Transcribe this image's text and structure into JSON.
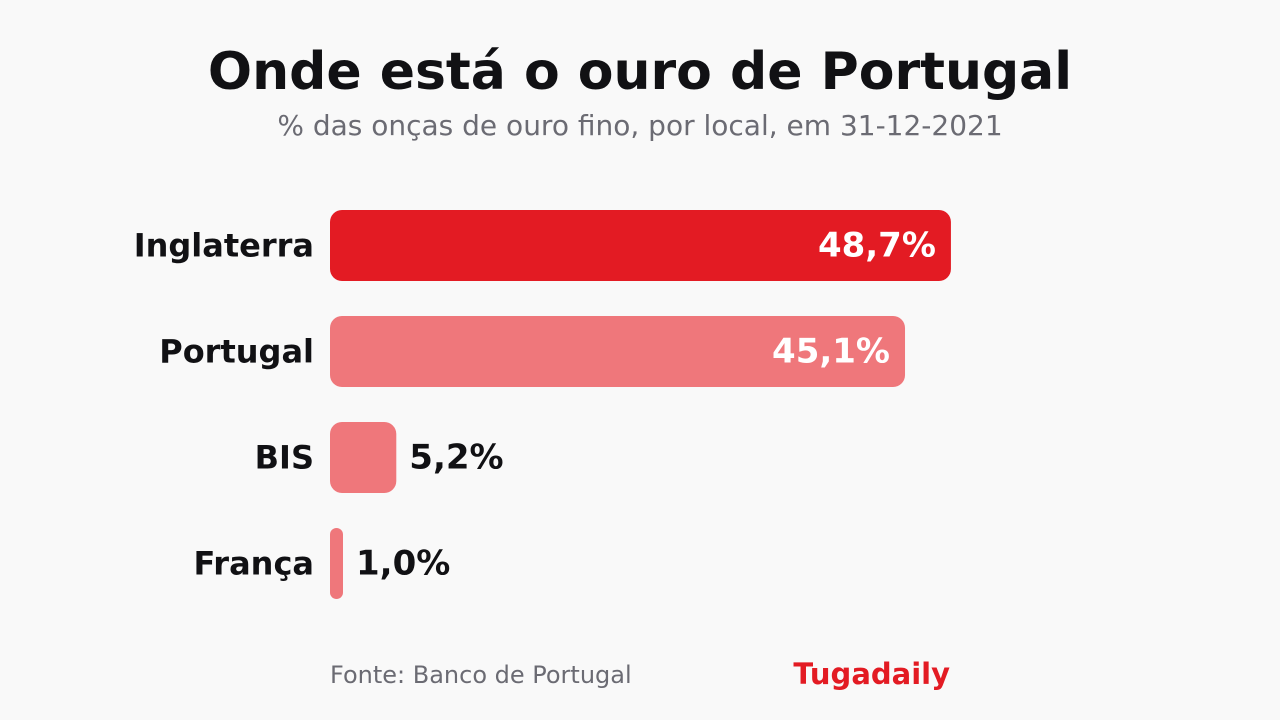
{
  "chart_data": {
    "type": "bar",
    "orientation": "horizontal",
    "title": "Onde está o ouro de Portugal",
    "subtitle": "% das onças de ouro fino, por local, em 31-12-2021",
    "categories": [
      "Inglaterra",
      "Portugal",
      "BIS",
      "França"
    ],
    "values": [
      48.7,
      45.1,
      5.2,
      1.0
    ],
    "value_labels": [
      "48,7%",
      "45,1%",
      "5,2%",
      "1,0%"
    ],
    "xlim": [
      0,
      100
    ],
    "grid": false,
    "legend": "none",
    "colors": {
      "highlight": "#e31b23",
      "default": "#ef777b",
      "label_inside": "#ffffff",
      "label_outside": "#111114"
    }
  },
  "footer": {
    "source": "Fonte: Banco de Portugal",
    "brand": "Tugadaily"
  }
}
